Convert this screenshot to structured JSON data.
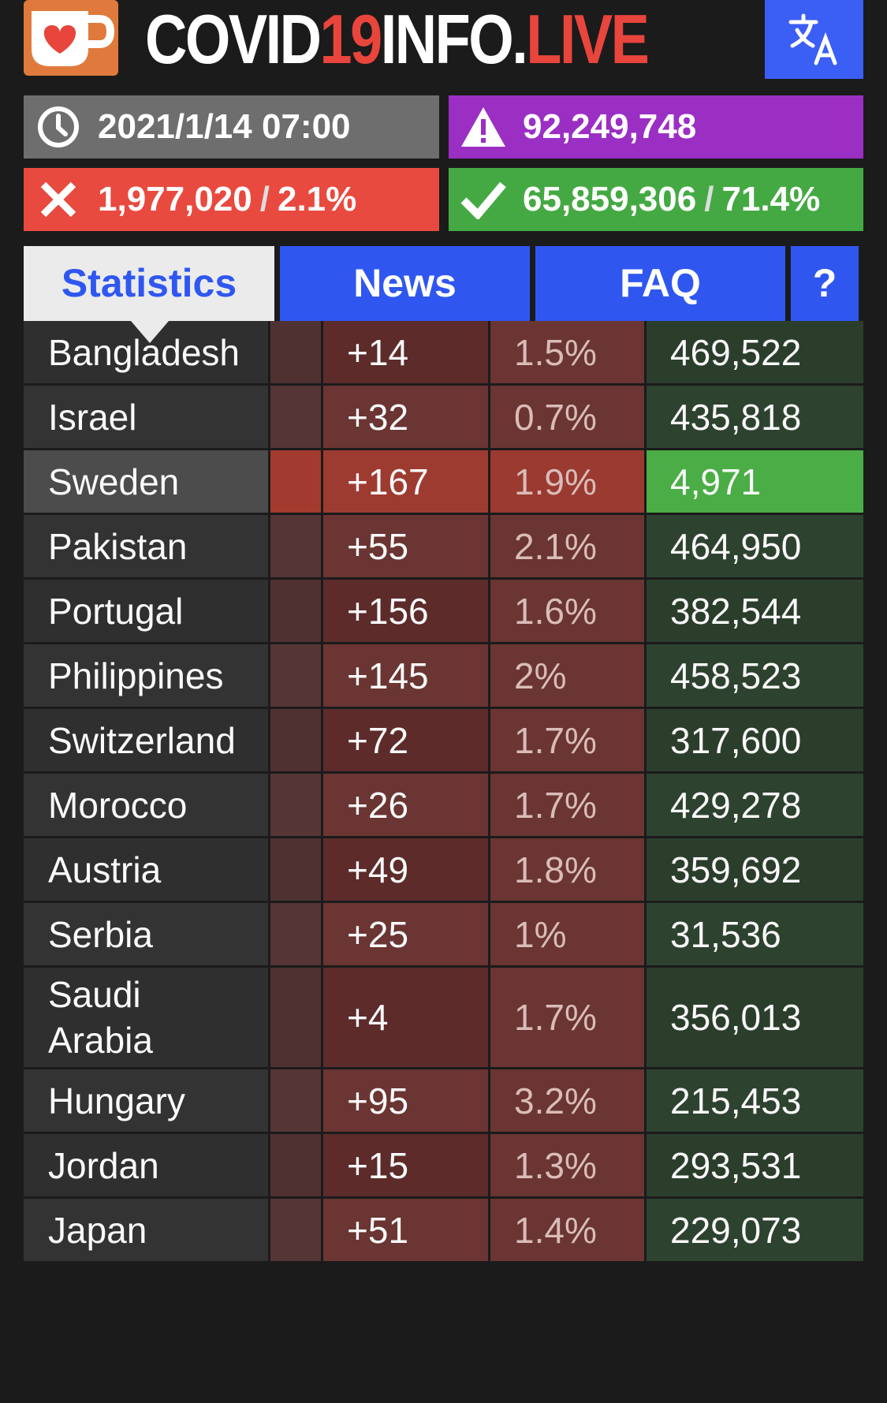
{
  "app": {
    "logo_icon": "coffee-cup-heart-icon",
    "title_part1": "COVID",
    "title_part2": "19",
    "title_part3": "INFO.",
    "title_part4": "LIVE",
    "lang_icon": "translate-icon"
  },
  "summary": {
    "time": {
      "icon": "clock-icon",
      "value": "2021/1/14 07:00"
    },
    "total": {
      "icon": "warning-icon",
      "value": "92,249,748"
    },
    "deaths": {
      "icon": "x-icon",
      "value": "1,977,020",
      "sep": "/",
      "pct": "2.1%"
    },
    "recovered": {
      "icon": "check-icon",
      "value": "65,859,306",
      "sep": "/",
      "pct": "71.4%"
    }
  },
  "tabs": [
    {
      "label": "Statistics",
      "active": true
    },
    {
      "label": "News",
      "active": false
    },
    {
      "label": "FAQ",
      "active": false
    },
    {
      "label": "?",
      "active": false
    }
  ],
  "colors": {
    "accent_blue": "#2f57f0",
    "red": "#e84a3f",
    "green": "#45a943",
    "purple": "#9b2fc4",
    "title_red": "#e8453c"
  },
  "rows": [
    {
      "country": "Bangladesh",
      "new": "+14",
      "rate": "1.5%",
      "active": "469,522"
    },
    {
      "country": "Israel",
      "new": "+32",
      "rate": "0.7%",
      "active": "435,818"
    },
    {
      "country": "Sweden",
      "new": "+167",
      "rate": "1.9%",
      "active": "4,971",
      "highlight": true
    },
    {
      "country": "Pakistan",
      "new": "+55",
      "rate": "2.1%",
      "active": "464,950"
    },
    {
      "country": "Portugal",
      "new": "+156",
      "rate": "1.6%",
      "active": "382,544"
    },
    {
      "country": "Philippines",
      "new": "+145",
      "rate": "2%",
      "active": "458,523"
    },
    {
      "country": "Switzerland",
      "new": "+72",
      "rate": "1.7%",
      "active": "317,600"
    },
    {
      "country": "Morocco",
      "new": "+26",
      "rate": "1.7%",
      "active": "429,278"
    },
    {
      "country": "Austria",
      "new": "+49",
      "rate": "1.8%",
      "active": "359,692"
    },
    {
      "country": "Serbia",
      "new": "+25",
      "rate": "1%",
      "active": "31,536"
    },
    {
      "country": "Saudi Arabia",
      "new": "+4",
      "rate": "1.7%",
      "active": "356,013"
    },
    {
      "country": "Hungary",
      "new": "+95",
      "rate": "3.2%",
      "active": "215,453"
    },
    {
      "country": "Jordan",
      "new": "+15",
      "rate": "1.3%",
      "active": "293,531"
    },
    {
      "country": "Japan",
      "new": "+51",
      "rate": "1.4%",
      "active": "229,073"
    }
  ]
}
